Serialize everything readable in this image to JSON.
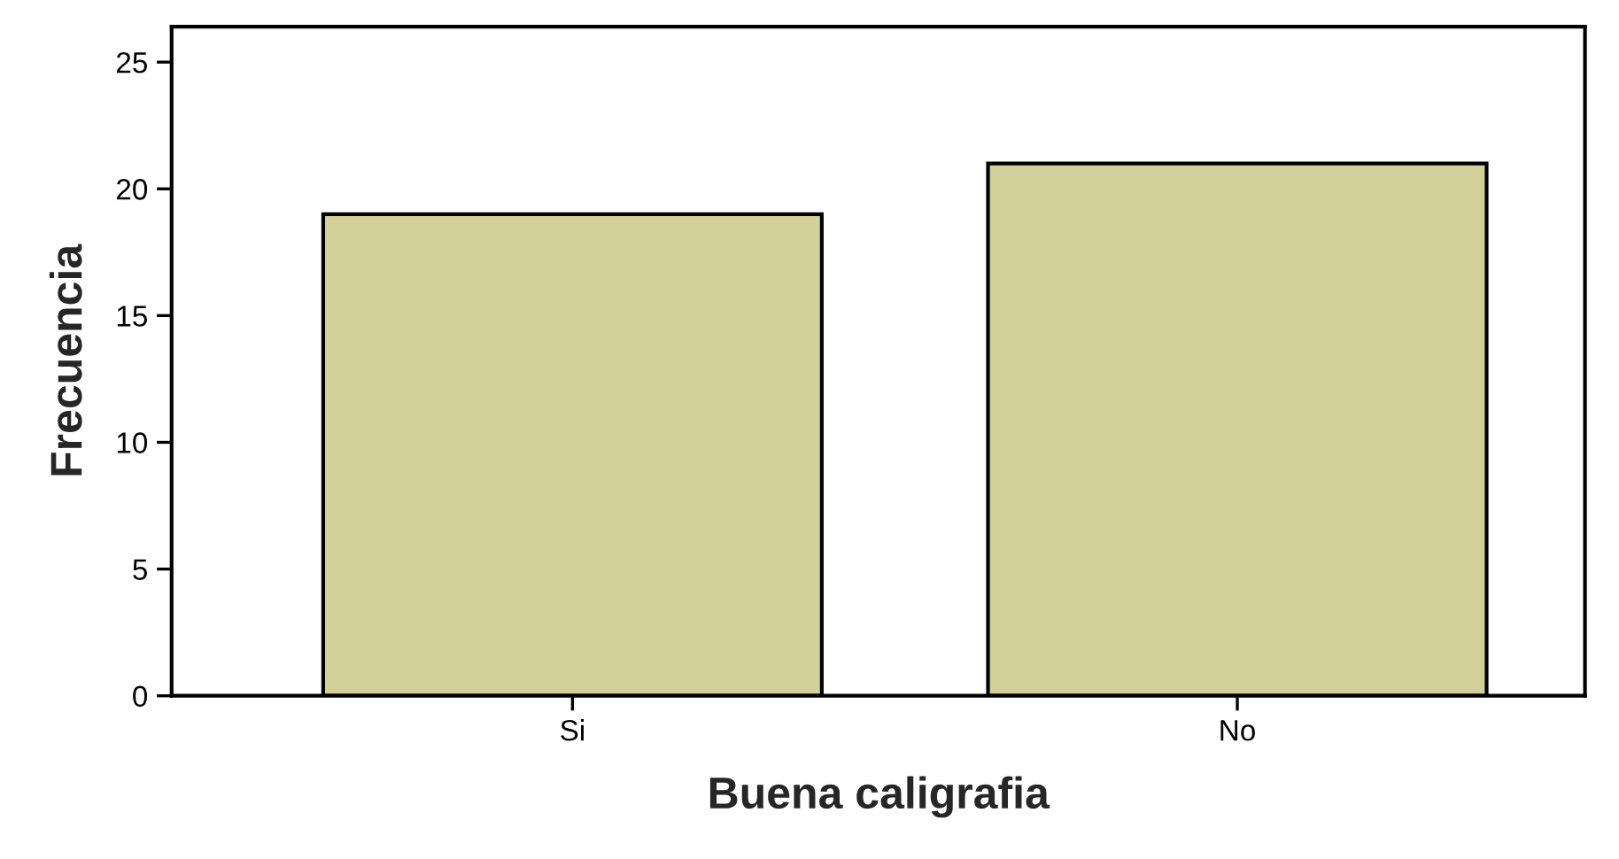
{
  "chart_data": {
    "type": "bar",
    "xlabel": "Buena caligrafia",
    "ylabel": "Frecuencia",
    "categories": [
      "Si",
      "No"
    ],
    "values": [
      19,
      21
    ],
    "color": "#d2cf99",
    "ylim": [
      0,
      26.4
    ],
    "yticks": [
      0,
      5,
      10,
      15,
      20,
      25
    ],
    "grid": false
  }
}
